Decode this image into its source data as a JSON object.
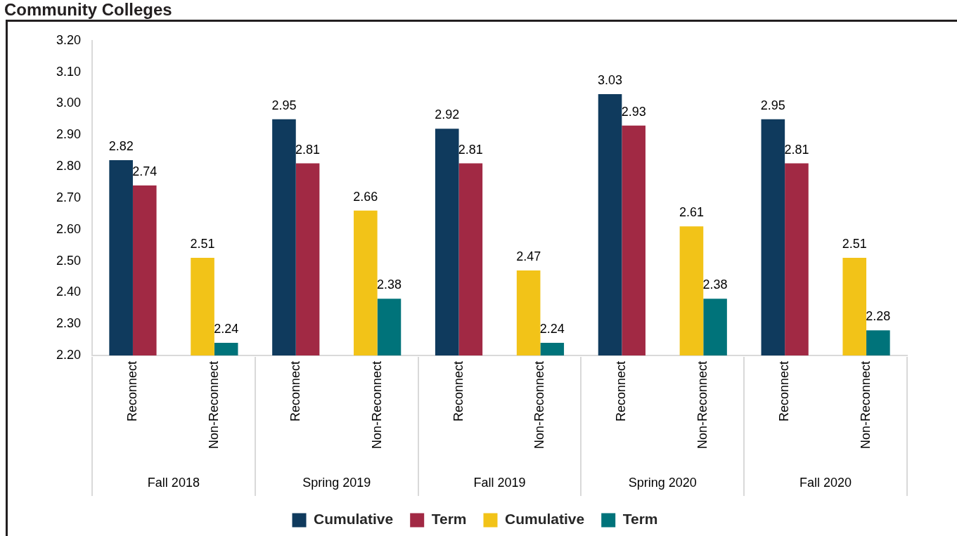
{
  "chart_data": {
    "type": "bar",
    "title": "Community Colleges",
    "categories": [
      "Reconnect",
      "Non-Reconnect",
      "Reconnect",
      "Non-Reconnect",
      "Reconnect",
      "Non-Reconnect",
      "Reconnect",
      "Non-Reconnect",
      "Reconnect",
      "Non-Reconnect"
    ],
    "series": [
      {
        "name": "Cumulative",
        "color": "#0f3a5d",
        "values": [
          2.82,
          null,
          2.95,
          null,
          2.92,
          null,
          3.03,
          null,
          2.95,
          null
        ]
      },
      {
        "name": "Term",
        "color": "#a12944",
        "values": [
          2.74,
          null,
          2.81,
          null,
          2.81,
          null,
          2.93,
          null,
          2.81,
          null
        ]
      },
      {
        "name": "Cumulative",
        "color": "#f2c318",
        "values": [
          null,
          2.51,
          null,
          2.66,
          null,
          2.47,
          null,
          2.61,
          null,
          2.51
        ]
      },
      {
        "name": "Term",
        "color": "#00737a",
        "values": [
          null,
          2.24,
          null,
          2.38,
          null,
          2.24,
          null,
          2.38,
          null,
          2.28
        ]
      }
    ],
    "ylim": [
      2.2,
      3.2
    ],
    "yticks": [
      {
        "value": 2.2,
        "label": "2.20"
      },
      {
        "value": 2.3,
        "label": "2.30"
      },
      {
        "value": 2.4,
        "label": "2.40"
      },
      {
        "value": 2.5,
        "label": "2.50"
      },
      {
        "value": 2.6,
        "label": "2.60"
      },
      {
        "value": 2.7,
        "label": "2.70"
      },
      {
        "value": 2.8,
        "label": "2.80"
      },
      {
        "value": 2.9,
        "label": "2.90"
      },
      {
        "value": 3.0,
        "label": "3.00"
      },
      {
        "value": 3.1,
        "label": "3.10"
      },
      {
        "value": 3.2,
        "label": "3.20"
      }
    ],
    "grid": false,
    "legend": "bottom",
    "data_labels": true,
    "annotations": [
      "Fall 2018",
      "Spring 2019",
      "Fall 2019",
      "Spring 2020",
      "Fall 2020"
    ]
  }
}
